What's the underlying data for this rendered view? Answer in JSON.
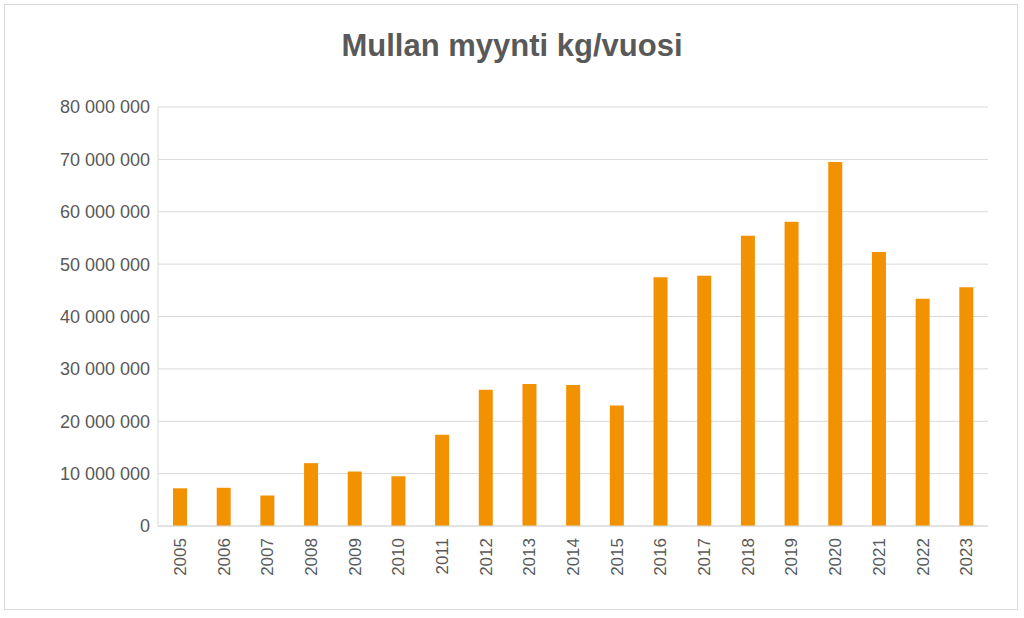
{
  "chart_data": {
    "type": "bar",
    "title": "Mullan myynti kg/vuosi",
    "categories": [
      "2005",
      "2006",
      "2007",
      "2008",
      "2009",
      "2010",
      "2011",
      "2012",
      "2013",
      "2014",
      "2015",
      "2016",
      "2017",
      "2018",
      "2019",
      "2020",
      "2021",
      "2022",
      "2023"
    ],
    "values": [
      7200000,
      7300000,
      5800000,
      12000000,
      10400000,
      9500000,
      17400000,
      26000000,
      27100000,
      26900000,
      23000000,
      47500000,
      47800000,
      55400000,
      58100000,
      69500000,
      52300000,
      43400000,
      45600000
    ],
    "color": "#f39200",
    "ylim": [
      0,
      80000000
    ],
    "yticks": [
      0,
      {
        "value": 10000000,
        "label": "10 000 000"
      },
      {
        "value": 20000000,
        "label": "20 000 000"
      },
      {
        "value": 30000000,
        "label": "30 000 000"
      },
      {
        "value": 40000000,
        "label": "40 000 000"
      },
      {
        "value": 50000000,
        "label": "50 000 000"
      },
      {
        "value": 60000000,
        "label": "60 000 000"
      },
      {
        "value": 70000000,
        "label": "70 000 000"
      },
      {
        "value": 80000000,
        "label": "80 000 000"
      }
    ],
    "grid": true
  }
}
